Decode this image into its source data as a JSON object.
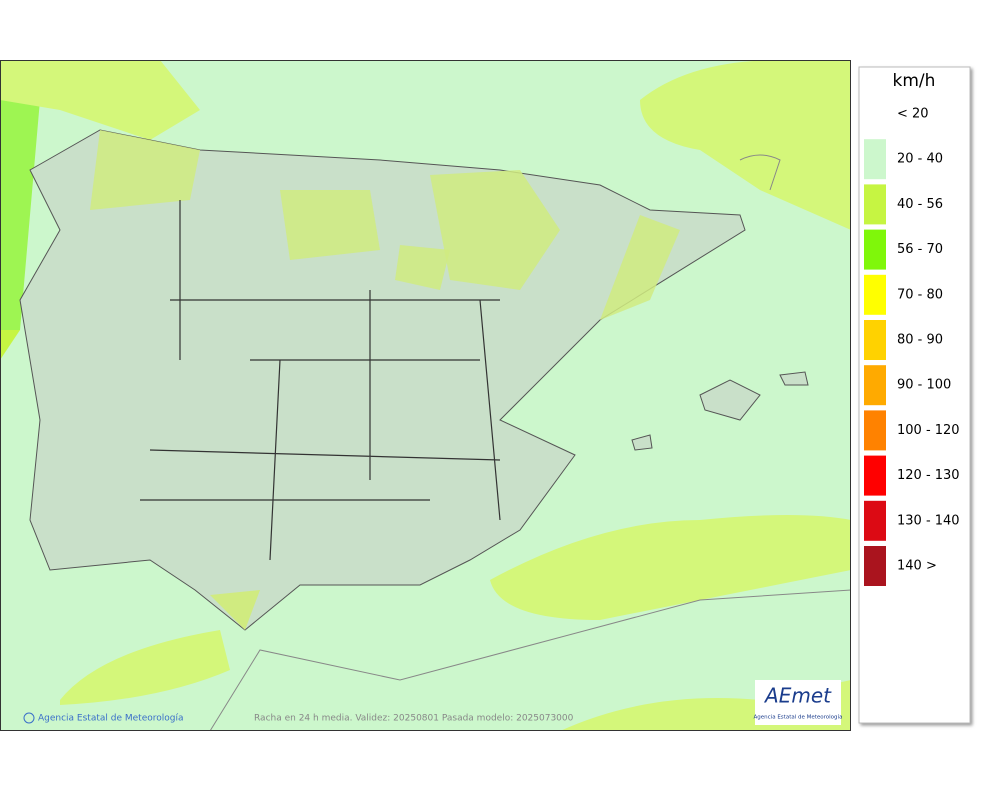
{
  "legend": {
    "title": "km/h",
    "items": [
      {
        "label": "< 20",
        "color": "#ffffff"
      },
      {
        "label": "20 - 40",
        "color": "#ccf7cc"
      },
      {
        "label": "40 - 56",
        "color": "#c6f542"
      },
      {
        "label": "56 - 70",
        "color": "#7ff70a"
      },
      {
        "label": "70 - 80",
        "color": "#ffff00"
      },
      {
        "label": "80 - 90",
        "color": "#ffd200"
      },
      {
        "label": "90 - 100",
        "color": "#ffaa00"
      },
      {
        "label": "100 - 120",
        "color": "#ff8200"
      },
      {
        "label": "120 - 130",
        "color": "#ff0000"
      },
      {
        "label": "130 - 140",
        "color": "#dc0a14"
      },
      {
        "label": "140 >",
        "color": "#aa141e"
      }
    ]
  },
  "footer": {
    "copyright": "Agencia Estatal de Meteorología",
    "caption": "Racha en 24 h media. Validez: 20250801 Pasada modelo: 2025073000"
  },
  "logo": {
    "name": "AEmet",
    "subtitle": "Agencia Estatal de Meteorología"
  }
}
